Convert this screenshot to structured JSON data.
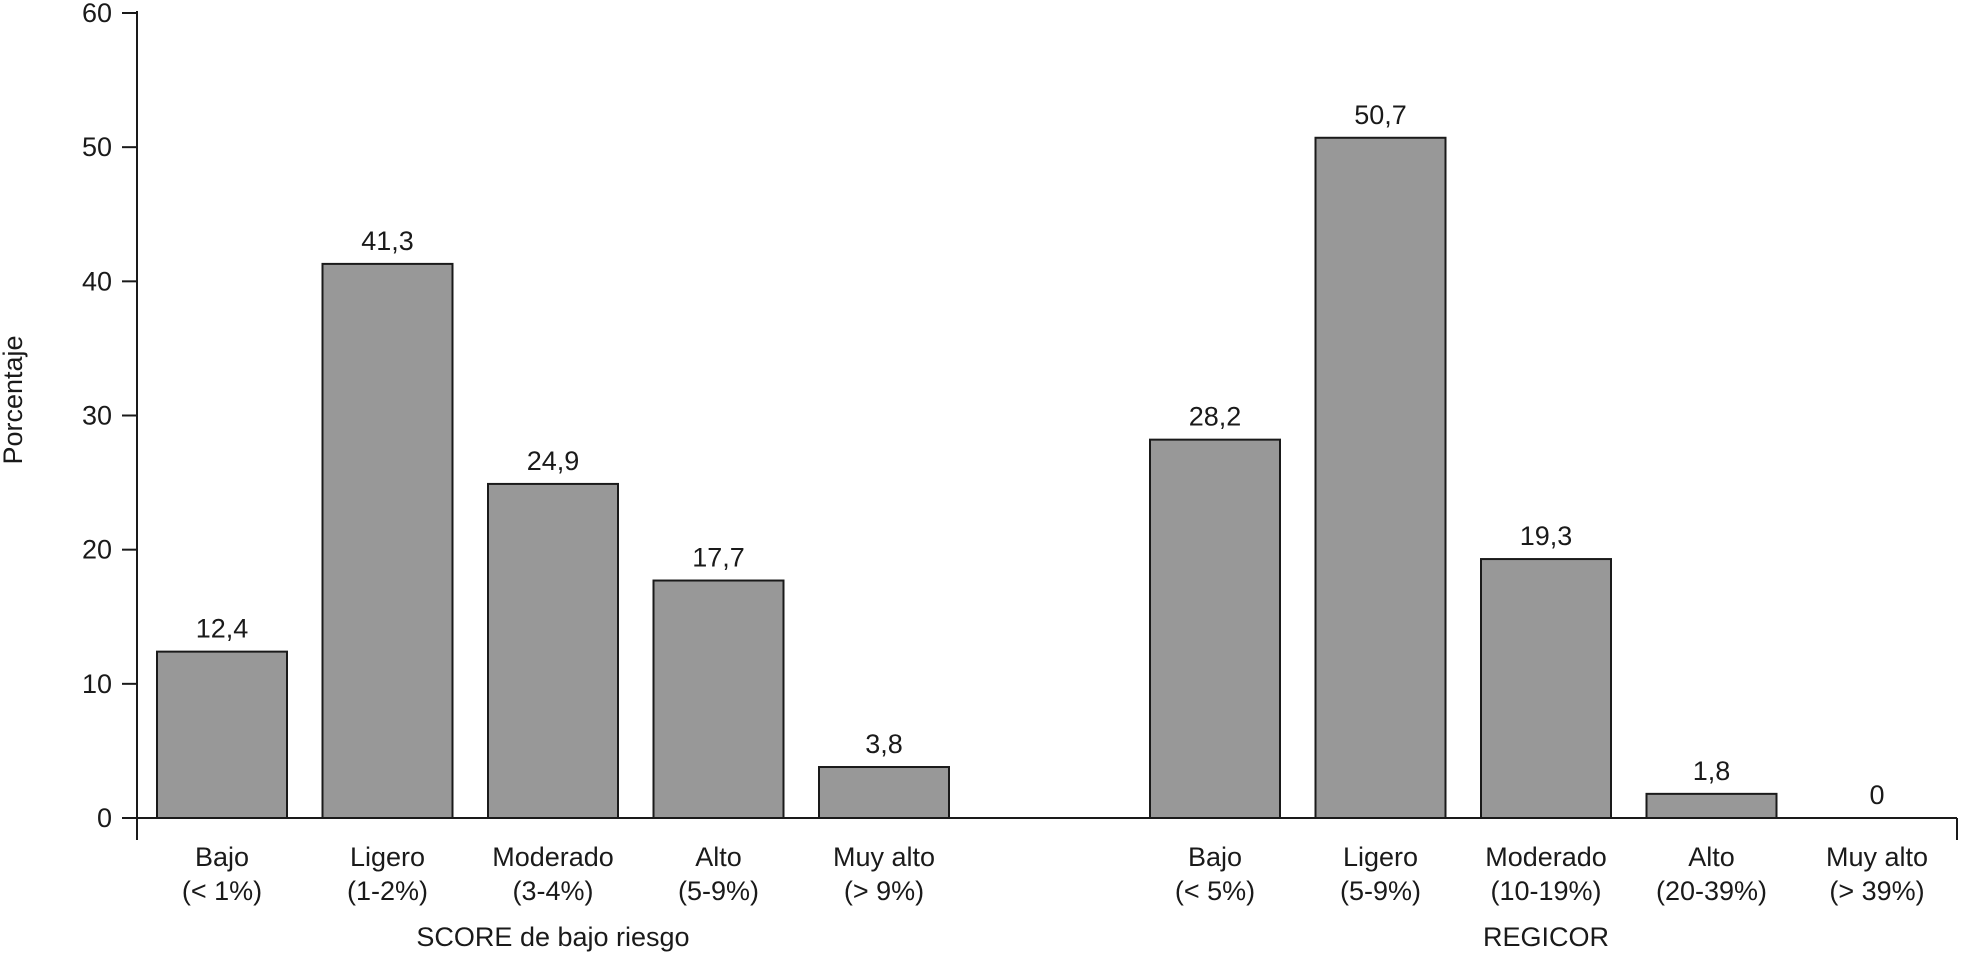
{
  "chart_data": {
    "type": "bar",
    "ylabel": "Porcentaje",
    "ylim": [
      0,
      60
    ],
    "yticks": [
      "0",
      "10",
      "20",
      "30",
      "40",
      "50",
      "60"
    ],
    "groups": [
      {
        "name": "SCORE de bajo riesgo",
        "categories": [
          {
            "line1": "Bajo",
            "line2": "(< 1%)"
          },
          {
            "line1": "Ligero",
            "line2": "(1-2%)"
          },
          {
            "line1": "Moderado",
            "line2": "(3-4%)"
          },
          {
            "line1": "Alto",
            "line2": "(5-9%)"
          },
          {
            "line1": "Muy alto",
            "line2": "(> 9%)"
          }
        ],
        "values": [
          12.4,
          41.3,
          24.9,
          17.7,
          3.8
        ],
        "value_labels": [
          "12,4",
          "41,3",
          "24,9",
          "17,7",
          "3,8"
        ]
      },
      {
        "name": "REGICOR",
        "categories": [
          {
            "line1": "Bajo",
            "line2": "(< 5%)"
          },
          {
            "line1": "Ligero",
            "line2": "(5-9%)"
          },
          {
            "line1": "Moderado",
            "line2": "(10-19%)"
          },
          {
            "line1": "Alto",
            "line2": "(20-39%)"
          },
          {
            "line1": "Muy alto",
            "line2": "(> 39%)"
          }
        ],
        "values": [
          28.2,
          50.7,
          19.3,
          1.8,
          0
        ],
        "value_labels": [
          "28,2",
          "50,7",
          "19,3",
          "1,8",
          "0"
        ]
      }
    ],
    "grid": false,
    "bar_color": "#989898"
  }
}
